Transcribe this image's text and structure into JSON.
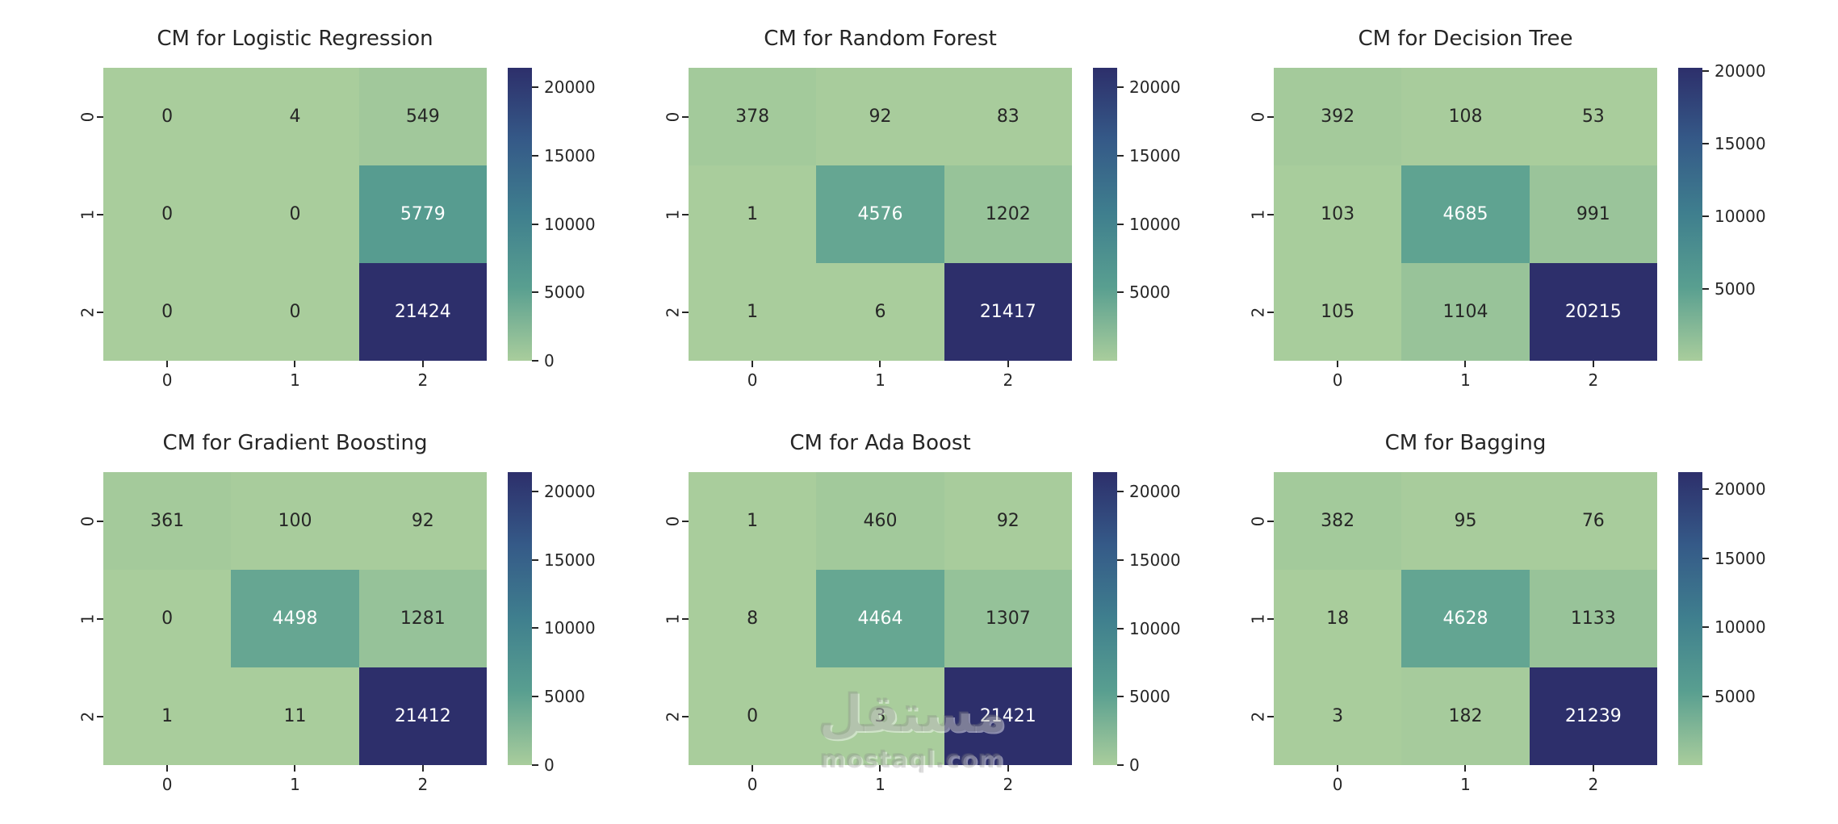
{
  "figure": {
    "background": "#ffffff",
    "text_color": "#262626"
  },
  "colormap": {
    "name": "crest-like",
    "stops": [
      "#a9cd9c",
      "#599f90",
      "#3f7f8e",
      "#355a88",
      "#2d2f6b"
    ]
  },
  "watermark": {
    "arabic": "مستقل",
    "latin": "mostaql.com"
  },
  "chart_data": [
    {
      "type": "heatmap",
      "title": "CM for Logistic Regression",
      "x_ticks": [
        "0",
        "1",
        "2"
      ],
      "y_ticks": [
        "0",
        "1",
        "2"
      ],
      "matrix": [
        [
          0,
          4,
          549
        ],
        [
          0,
          0,
          5779
        ],
        [
          0,
          0,
          21424
        ]
      ],
      "vmin": 0,
      "vmax": 21424,
      "colorbar_ticks": [
        0,
        5000,
        10000,
        15000,
        20000
      ]
    },
    {
      "type": "heatmap",
      "title": "CM for Random Forest",
      "x_ticks": [
        "0",
        "1",
        "2"
      ],
      "y_ticks": [
        "0",
        "1",
        "2"
      ],
      "matrix": [
        [
          378,
          92,
          83
        ],
        [
          1,
          4576,
          1202
        ],
        [
          1,
          6,
          21417
        ]
      ],
      "vmin": 1,
      "vmax": 21417,
      "colorbar_ticks": [
        5000,
        10000,
        15000,
        20000
      ]
    },
    {
      "type": "heatmap",
      "title": "CM for Decision Tree",
      "x_ticks": [
        "0",
        "1",
        "2"
      ],
      "y_ticks": [
        "0",
        "1",
        "2"
      ],
      "matrix": [
        [
          392,
          108,
          53
        ],
        [
          103,
          4685,
          991
        ],
        [
          105,
          1104,
          20215
        ]
      ],
      "vmin": 53,
      "vmax": 20215,
      "colorbar_ticks": [
        5000,
        10000,
        15000,
        20000
      ]
    },
    {
      "type": "heatmap",
      "title": "CM for Gradient Boosting",
      "x_ticks": [
        "0",
        "1",
        "2"
      ],
      "y_ticks": [
        "0",
        "1",
        "2"
      ],
      "matrix": [
        [
          361,
          100,
          92
        ],
        [
          0,
          4498,
          1281
        ],
        [
          1,
          11,
          21412
        ]
      ],
      "vmin": 0,
      "vmax": 21412,
      "colorbar_ticks": [
        0,
        5000,
        10000,
        15000,
        20000
      ]
    },
    {
      "type": "heatmap",
      "title": "CM for Ada Boost",
      "x_ticks": [
        "0",
        "1",
        "2"
      ],
      "y_ticks": [
        "0",
        "1",
        "2"
      ],
      "matrix": [
        [
          1,
          460,
          92
        ],
        [
          8,
          4464,
          1307
        ],
        [
          0,
          3,
          21421
        ]
      ],
      "vmin": 0,
      "vmax": 21421,
      "colorbar_ticks": [
        0,
        5000,
        10000,
        15000,
        20000
      ]
    },
    {
      "type": "heatmap",
      "title": "CM for Bagging",
      "x_ticks": [
        "0",
        "1",
        "2"
      ],
      "y_ticks": [
        "0",
        "1",
        "2"
      ],
      "matrix": [
        [
          382,
          95,
          76
        ],
        [
          18,
          4628,
          1133
        ],
        [
          3,
          182,
          21239
        ]
      ],
      "vmin": 3,
      "vmax": 21239,
      "colorbar_ticks": [
        5000,
        10000,
        15000,
        20000
      ]
    }
  ]
}
